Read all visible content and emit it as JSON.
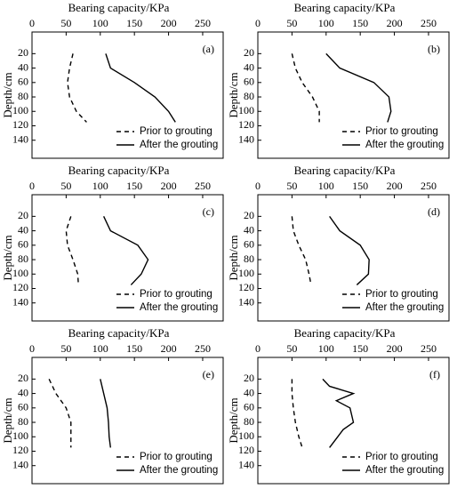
{
  "chart_data": [
    {
      "type": "line",
      "x_label": "Bearing capacity/KPa",
      "y_label": "Depth/cm",
      "panel_label": "(a)",
      "xlim": [
        0,
        280
      ],
      "xticks": [
        0,
        50,
        100,
        150,
        200,
        250
      ],
      "x_axis_position": "top",
      "ylim": [
        -10,
        165
      ],
      "yticks": [
        20,
        40,
        60,
        80,
        100,
        120,
        140
      ],
      "y_inverted": true,
      "legend": "lower right",
      "series": [
        {
          "name": "Prior to grouting",
          "color": "#000000",
          "dashed": true,
          "x": [
            60,
            55,
            52,
            55,
            65,
            80
          ],
          "y": [
            20,
            40,
            60,
            80,
            100,
            115
          ]
        },
        {
          "name": "After the grouting",
          "color": "#000000",
          "dashed": false,
          "x": [
            108,
            115,
            150,
            180,
            200,
            210
          ],
          "y": [
            20,
            40,
            60,
            80,
            100,
            115
          ]
        }
      ]
    },
    {
      "type": "line",
      "x_label": "Bearing capacity/KPa",
      "y_label": "Depth/cm",
      "panel_label": "(b)",
      "xlim": [
        0,
        280
      ],
      "xticks": [
        0,
        50,
        100,
        150,
        200,
        250
      ],
      "x_axis_position": "top",
      "ylim": [
        -10,
        165
      ],
      "yticks": [
        20,
        40,
        60,
        80,
        100,
        120,
        140
      ],
      "y_inverted": true,
      "legend": "lower right",
      "series": [
        {
          "name": "Prior to grouting",
          "color": "#000000",
          "dashed": true,
          "x": [
            50,
            55,
            65,
            80,
            90,
            90
          ],
          "y": [
            20,
            40,
            60,
            80,
            100,
            115
          ]
        },
        {
          "name": "After the grouting",
          "color": "#000000",
          "dashed": false,
          "x": [
            100,
            120,
            170,
            192,
            195,
            190
          ],
          "y": [
            20,
            40,
            60,
            80,
            100,
            115
          ]
        }
      ]
    },
    {
      "type": "line",
      "x_label": "Bearing capacity/KPa",
      "y_label": "Depth/cm",
      "panel_label": "(c)",
      "xlim": [
        0,
        280
      ],
      "xticks": [
        0,
        50,
        100,
        150,
        200,
        250
      ],
      "x_axis_position": "top",
      "ylim": [
        -10,
        165
      ],
      "yticks": [
        20,
        40,
        60,
        80,
        100,
        120,
        140
      ],
      "y_inverted": true,
      "legend": "lower right",
      "series": [
        {
          "name": "Prior to grouting",
          "color": "#000000",
          "dashed": true,
          "x": [
            57,
            50,
            52,
            60,
            67,
            68
          ],
          "y": [
            20,
            40,
            60,
            80,
            100,
            115
          ]
        },
        {
          "name": "After the grouting",
          "color": "#000000",
          "dashed": false,
          "x": [
            105,
            115,
            155,
            170,
            160,
            145
          ],
          "y": [
            20,
            40,
            60,
            80,
            100,
            115
          ]
        }
      ]
    },
    {
      "type": "line",
      "x_label": "Bearing capacity/KPa",
      "y_label": "Depth/cm",
      "panel_label": "(d)",
      "xlim": [
        0,
        280
      ],
      "xticks": [
        0,
        50,
        100,
        150,
        200,
        250
      ],
      "x_axis_position": "top",
      "ylim": [
        -10,
        165
      ],
      "yticks": [
        20,
        40,
        60,
        80,
        100,
        120,
        140
      ],
      "y_inverted": true,
      "legend": "lower right",
      "series": [
        {
          "name": "Prior to grouting",
          "color": "#000000",
          "dashed": true,
          "x": [
            50,
            52,
            60,
            70,
            75,
            78
          ],
          "y": [
            20,
            40,
            60,
            80,
            100,
            115
          ]
        },
        {
          "name": "After the grouting",
          "color": "#000000",
          "dashed": false,
          "x": [
            105,
            120,
            150,
            163,
            162,
            145
          ],
          "y": [
            20,
            40,
            60,
            80,
            100,
            115
          ]
        }
      ]
    },
    {
      "type": "line",
      "x_label": "Bearing capacity/KPa",
      "y_label": "Depth/cm",
      "panel_label": "(e)",
      "xlim": [
        0,
        280
      ],
      "xticks": [
        0,
        50,
        100,
        150,
        200,
        250
      ],
      "x_axis_position": "top",
      "ylim": [
        -10,
        165
      ],
      "yticks": [
        20,
        40,
        60,
        80,
        100,
        120,
        140
      ],
      "y_inverted": true,
      "legend": "lower right",
      "series": [
        {
          "name": "Prior to grouting",
          "color": "#000000",
          "dashed": true,
          "x": [
            25,
            35,
            50,
            57,
            57,
            57
          ],
          "y": [
            20,
            40,
            60,
            80,
            100,
            115
          ]
        },
        {
          "name": "After the grouting",
          "color": "#000000",
          "dashed": false,
          "x": [
            100,
            105,
            110,
            112,
            113,
            115
          ],
          "y": [
            20,
            40,
            60,
            80,
            100,
            115
          ]
        }
      ]
    },
    {
      "type": "line",
      "x_label": "Bearing capacity/KPa",
      "y_label": "Depth/cm",
      "panel_label": "(f)",
      "xlim": [
        0,
        280
      ],
      "xticks": [
        0,
        50,
        100,
        150,
        200,
        250
      ],
      "x_axis_position": "top",
      "ylim": [
        -10,
        165
      ],
      "yticks": [
        20,
        40,
        60,
        80,
        100,
        120,
        140
      ],
      "y_inverted": true,
      "legend": "lower right",
      "series": [
        {
          "name": "Prior to grouting",
          "color": "#000000",
          "dashed": true,
          "x": [
            50,
            50,
            52,
            55,
            60,
            65
          ],
          "y": [
            20,
            40,
            60,
            80,
            100,
            115
          ]
        },
        {
          "name": "After the grouting",
          "color": "#000000",
          "dashed": false,
          "x": [
            95,
            105,
            140,
            115,
            135,
            140,
            125,
            105
          ],
          "y": [
            20,
            30,
            40,
            50,
            60,
            80,
            90,
            115
          ]
        }
      ]
    }
  ]
}
